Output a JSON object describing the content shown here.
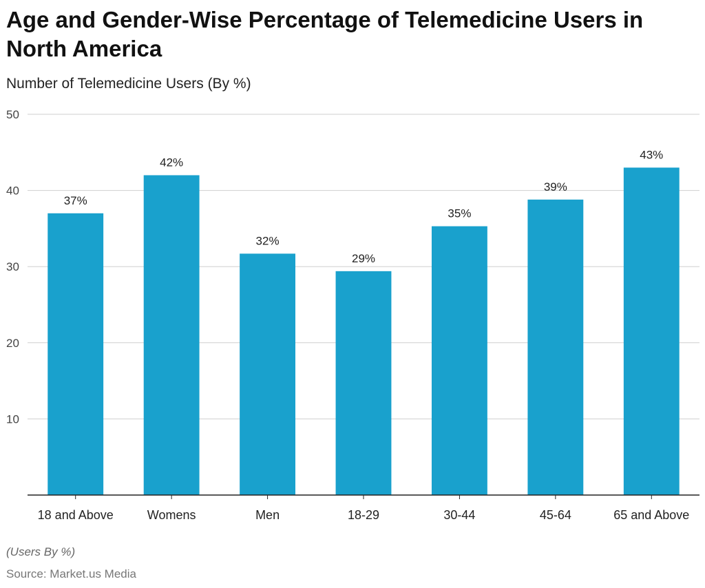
{
  "chart_data": {
    "type": "bar",
    "title": "Age and Gender-Wise Percentage of Telemedicine Users in North America",
    "subtitle": "Number of Telemedicine Users (By %)",
    "categories": [
      "18 and Above",
      "Womens",
      "Men",
      "18-29",
      "30-44",
      "45-64",
      "65 and Above"
    ],
    "values": [
      37,
      42,
      31.7,
      29.4,
      35.3,
      38.8,
      43
    ],
    "data_labels": [
      "37%",
      "42%",
      "32%",
      "29%",
      "35%",
      "39%",
      "43%"
    ],
    "ylim": [
      0,
      50
    ],
    "yticks": [
      10,
      20,
      30,
      40,
      50
    ],
    "grid": true,
    "bar_color": "#19a1cd",
    "note": "(Users By %)",
    "source": "Source: Market.us Media"
  }
}
